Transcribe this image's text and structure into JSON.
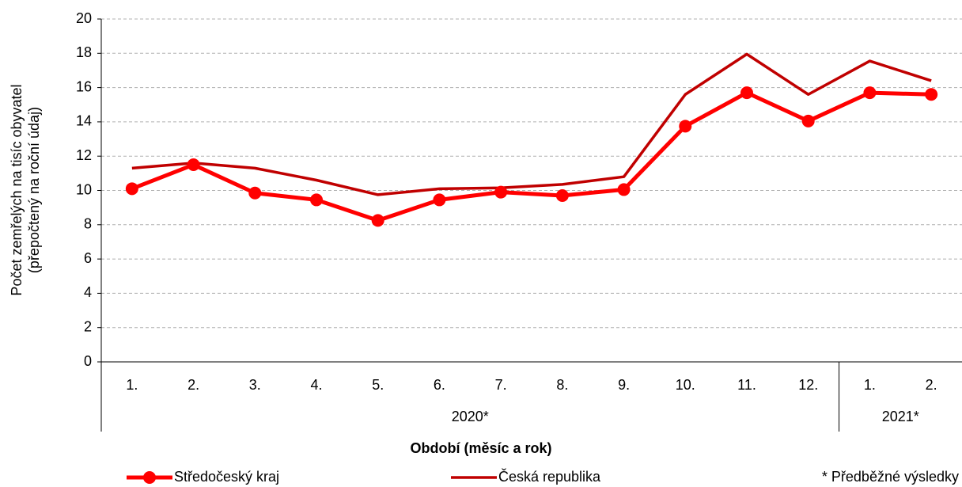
{
  "chart_data": {
    "type": "line",
    "y_label": [
      "Počet zemřelých na tisíc obyvatel",
      "(přepočtený na roční údaj)"
    ],
    "x_label": "Období (měsíc a rok)",
    "categories": [
      "1.",
      "2.",
      "3.",
      "4.",
      "5.",
      "6.",
      "7.",
      "8.",
      "9.",
      "10.",
      "11.",
      "12.",
      "1.",
      "2."
    ],
    "year_groups": [
      {
        "label": "2020*",
        "span": 12
      },
      {
        "label": "2021*",
        "span": 2
      }
    ],
    "series": [
      {
        "name": "Středočeský kraj",
        "color": "#ff0000",
        "marker": "circle",
        "values": [
          10.1,
          11.5,
          9.85,
          9.45,
          8.25,
          9.45,
          9.9,
          9.7,
          10.05,
          13.75,
          15.7,
          14.05,
          15.7,
          15.6
        ]
      },
      {
        "name": "Česká republika",
        "color": "#c00000",
        "values": [
          11.3,
          11.6,
          11.3,
          10.6,
          9.75,
          10.1,
          10.15,
          10.35,
          10.8,
          15.6,
          17.95,
          15.6,
          17.55,
          16.4
        ]
      }
    ],
    "ylim": [
      0,
      20
    ],
    "yticks": [
      0,
      2,
      4,
      6,
      8,
      10,
      12,
      14,
      16,
      18,
      20
    ],
    "grid": true,
    "note": "* Předběžné výsledky"
  }
}
